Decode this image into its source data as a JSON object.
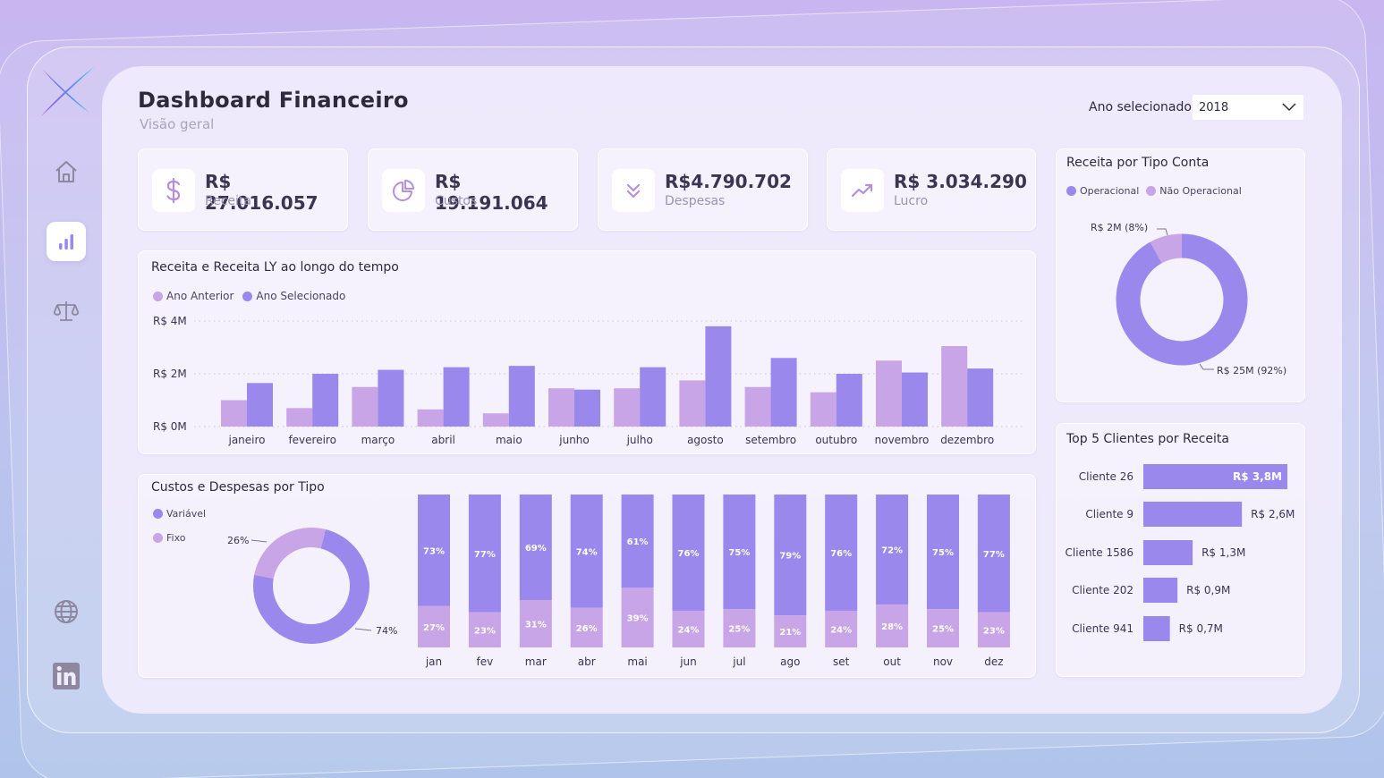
{
  "header": {
    "title": "Dashboard Financeiro",
    "subtitle": "Visão geral",
    "year_label": "Ano selecionado",
    "year_value": "2018"
  },
  "sidebar": {
    "items": [
      {
        "name": "home",
        "icon": "home-icon"
      },
      {
        "name": "chart",
        "icon": "bar-chart-icon",
        "active": true
      },
      {
        "name": "balance",
        "icon": "scale-icon"
      }
    ],
    "bottom": [
      {
        "name": "web",
        "icon": "globe-icon"
      },
      {
        "name": "linkedin",
        "icon": "linkedin-icon"
      }
    ]
  },
  "kpis": [
    {
      "value": "R$ 27.016.057",
      "label": "Receita",
      "icon": "dollar-icon"
    },
    {
      "value": "R$ 19.191.064",
      "label": "Custos",
      "icon": "pie-icon"
    },
    {
      "value": "R$4.790.702",
      "label": "Despesas",
      "icon": "chevrons-down-icon"
    },
    {
      "value": "R$ 3.034.290",
      "label": "Lucro",
      "icon": "trend-up-icon"
    }
  ],
  "colors": {
    "light_purple": "#c8a5e6",
    "purple": "#9a88ec"
  },
  "charts": {
    "revenue": {
      "title": "Receita e Receita LY ao longo do tempo",
      "legend": [
        "Ano Anterior",
        "Ano Selecionado"
      ]
    },
    "costs": {
      "title": "Custos e Despesas por Tipo",
      "legend": [
        "Variável",
        "Fixo"
      ]
    },
    "account": {
      "title": "Receita por Tipo Conta",
      "legend": [
        "Operacional",
        "Não Operacional"
      ]
    },
    "clients": {
      "title": "Top 5 Clientes por Receita"
    }
  },
  "chart_data": [
    {
      "type": "bar",
      "title": "Receita e Receita LY ao longo do tempo",
      "categories": [
        "janeiro",
        "fevereiro",
        "março",
        "abril",
        "maio",
        "junho",
        "julho",
        "agosto",
        "setembro",
        "outubro",
        "novembro",
        "dezembro"
      ],
      "series": [
        {
          "name": "Ano Anterior",
          "values": [
            1.0,
            0.7,
            1.5,
            0.65,
            0.5,
            1.45,
            1.45,
            1.75,
            1.5,
            1.3,
            2.5,
            3.05
          ]
        },
        {
          "name": "Ano Selecionado",
          "values": [
            1.65,
            2.0,
            2.15,
            2.25,
            2.3,
            1.4,
            2.25,
            3.8,
            2.6,
            2.0,
            2.05,
            2.2
          ]
        }
      ],
      "ytick_labels": [
        "R$ 0M",
        "R$ 2M",
        "R$ 4M"
      ],
      "ylim": [
        0,
        4
      ],
      "grid": true
    },
    {
      "type": "pie",
      "title": "Custos e Despesas por Tipo",
      "labels": [
        "Variável",
        "Fixo"
      ],
      "values": [
        74,
        26
      ],
      "value_labels": [
        "74%",
        "26%"
      ]
    },
    {
      "type": "bar",
      "stacked": true,
      "categories": [
        "jan",
        "fev",
        "mar",
        "abr",
        "mai",
        "jun",
        "jul",
        "ago",
        "set",
        "out",
        "nov",
        "dez"
      ],
      "series": [
        {
          "name": "Variável",
          "values": [
            73,
            77,
            69,
            74,
            61,
            76,
            75,
            79,
            76,
            72,
            75,
            77
          ]
        },
        {
          "name": "Fixo",
          "values": [
            27,
            23,
            31,
            26,
            39,
            24,
            25,
            21,
            24,
            28,
            25,
            23
          ]
        }
      ],
      "ylim": [
        0,
        100
      ]
    },
    {
      "type": "pie",
      "title": "Receita por Tipo Conta",
      "labels": [
        "Operacional",
        "Não Operacional"
      ],
      "values": [
        92,
        8
      ],
      "value_labels": [
        "R$ 25M (92%)",
        "R$ 2M (8%)"
      ]
    },
    {
      "type": "bar",
      "orientation": "horizontal",
      "title": "Top 5 Clientes por Receita",
      "categories": [
        "Cliente 26",
        "Cliente 9",
        "Cliente 1586",
        "Cliente 202",
        "Cliente 941"
      ],
      "values": [
        3.8,
        2.6,
        1.3,
        0.9,
        0.7
      ],
      "value_labels": [
        "R$ 3,8M",
        "R$ 2,6M",
        "R$ 1,3M",
        "R$ 0,9M",
        "R$ 0,7M"
      ]
    }
  ]
}
